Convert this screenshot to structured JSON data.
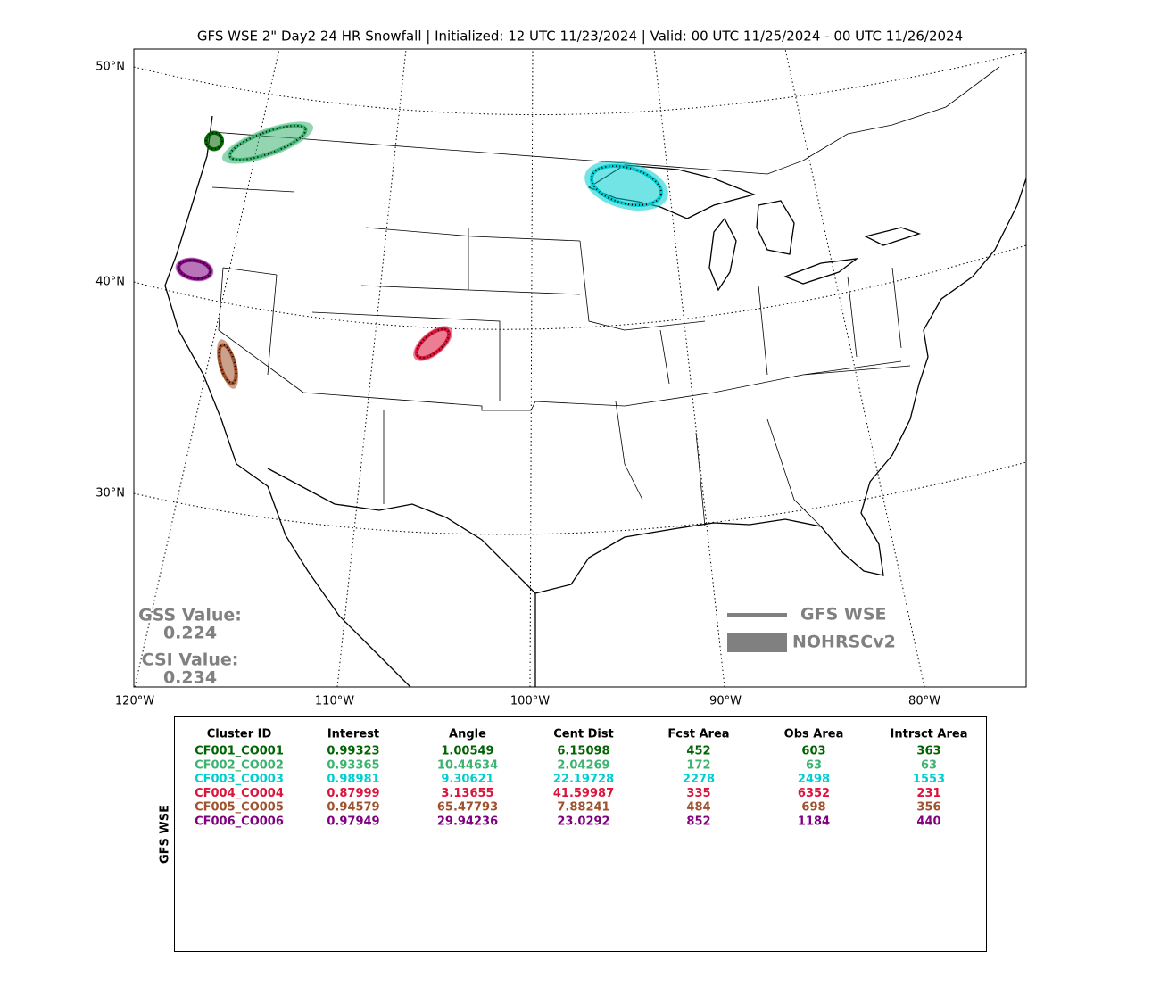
{
  "title": "GFS WSE 2\" Day2 24 HR Snowfall | Initialized: 12 UTC 11/23/2024 | Valid: 00 UTC 11/25/2024 - 00 UTC 11/26/2024",
  "map": {
    "lat_labels": [
      "50°N",
      "40°N",
      "30°N"
    ],
    "lon_labels": [
      "120°W",
      "110°W",
      "100°W",
      "90°W",
      "80°W"
    ],
    "legend": [
      {
        "label": "GFS WSE",
        "style": "line",
        "color": "#808080"
      },
      {
        "label": "NOHRSCv2",
        "style": "fill",
        "color": "#808080"
      }
    ],
    "scores": [
      {
        "label": "GSS Value:",
        "value": "0.224"
      },
      {
        "label": "CSI Value:",
        "value": "0.234"
      }
    ]
  },
  "table": {
    "side_label": "GFS WSE",
    "columns": [
      "Cluster ID",
      "Interest",
      "Angle",
      "Cent Dist",
      "Fcst Area",
      "Obs Area",
      "Intrsct Area"
    ],
    "rows": [
      {
        "color": "#006400",
        "cells": [
          "CF001_CO001",
          "0.99323",
          "1.00549",
          "6.15098",
          "452",
          "603",
          "363"
        ]
      },
      {
        "color": "#3cb371",
        "cells": [
          "CF002_CO002",
          "0.93365",
          "10.44634",
          "2.04269",
          "172",
          "63",
          "63"
        ]
      },
      {
        "color": "#00ced1",
        "cells": [
          "CF003_CO003",
          "0.98981",
          "9.30621",
          "22.19728",
          "2278",
          "2498",
          "1553"
        ]
      },
      {
        "color": "#dc143c",
        "cells": [
          "CF004_CO004",
          "0.87999",
          "3.13655",
          "41.59987",
          "335",
          "6352",
          "231"
        ]
      },
      {
        "color": "#a0522d",
        "cells": [
          "CF005_CO005",
          "0.94579",
          "65.47793",
          "7.88241",
          "484",
          "698",
          "356"
        ]
      },
      {
        "color": "#800080",
        "cells": [
          "CF006_CO006",
          "0.97949",
          "29.94236",
          "23.0292",
          "852",
          "1184",
          "440"
        ]
      }
    ]
  }
}
